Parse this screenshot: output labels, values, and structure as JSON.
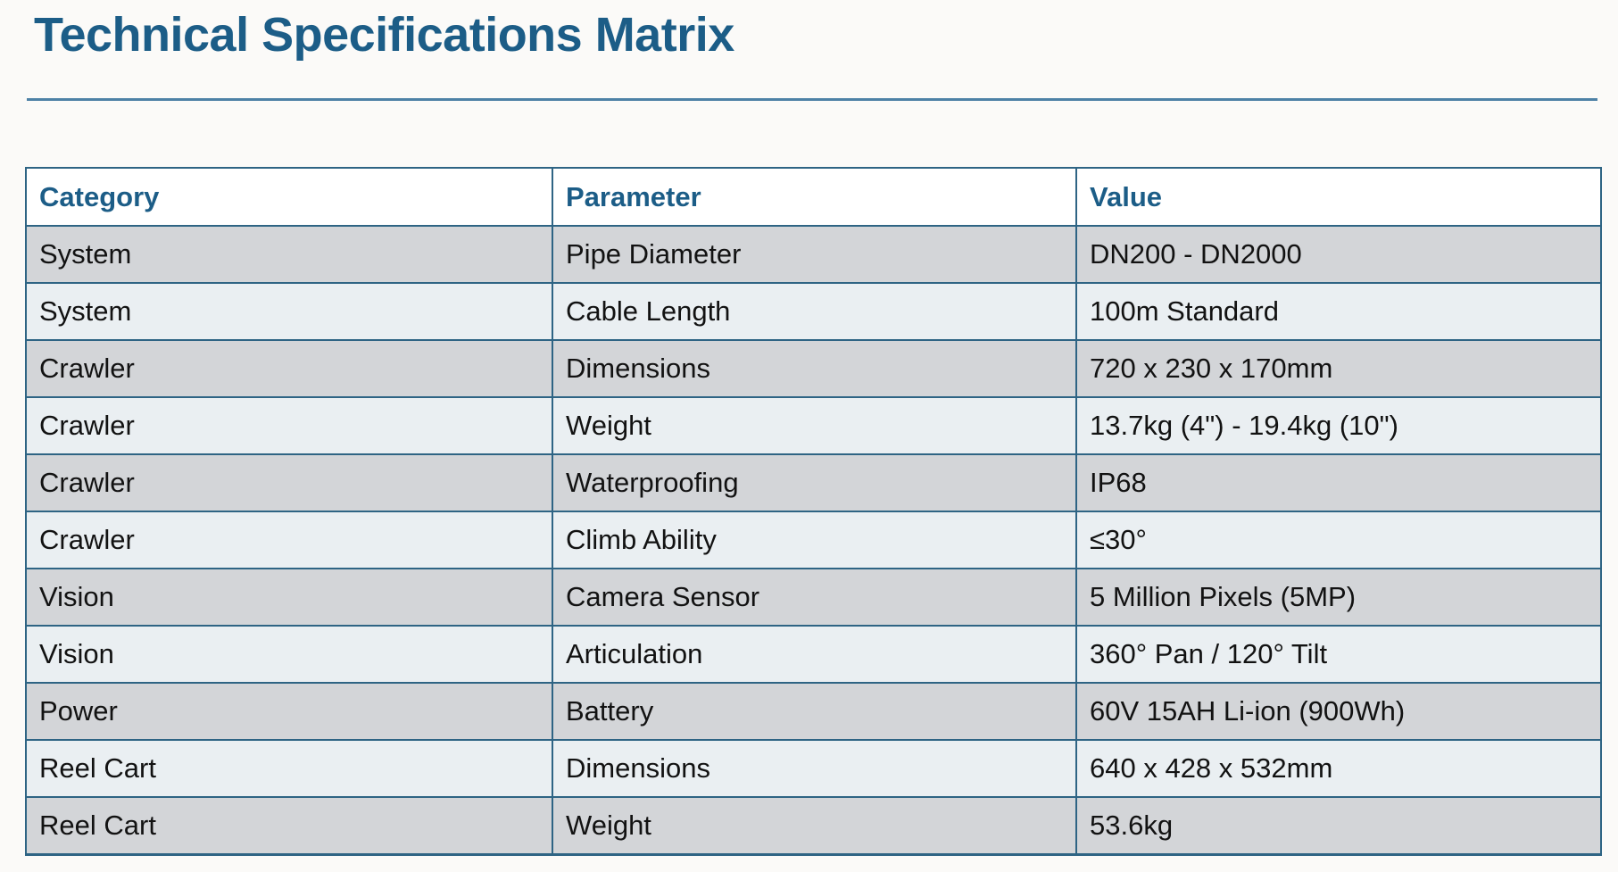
{
  "page": {
    "title": "Technical Specifications Matrix"
  },
  "table": {
    "columns": [
      "Category",
      "Parameter",
      "Value"
    ],
    "rows": [
      [
        "System",
        "Pipe Diameter",
        "DN200 - DN2000"
      ],
      [
        "System",
        "Cable Length",
        "100m Standard"
      ],
      [
        "Crawler",
        "Dimensions",
        "720 x 230 x 170mm"
      ],
      [
        "Crawler",
        "Weight",
        "13.7kg (4\") - 19.4kg (10\")"
      ],
      [
        "Crawler",
        "Waterproofing",
        "IP68"
      ],
      [
        "Crawler",
        "Climb Ability",
        "≤30°"
      ],
      [
        "Vision",
        "Camera Sensor",
        "5 Million Pixels (5MP)"
      ],
      [
        "Vision",
        "Articulation",
        "360° Pan / 120° Tilt"
      ],
      [
        "Power",
        "Battery",
        "60V 15AH Li-ion (900Wh)"
      ],
      [
        "Reel Cart",
        "Dimensions",
        "640 x 428 x 532mm"
      ],
      [
        "Reel Cart",
        "Weight",
        "53.6kg"
      ]
    ]
  },
  "colors": {
    "title_text": "#1c5d87",
    "header_text": "#1c5d87",
    "header_bg": "#ffffff",
    "border": "#2e6484",
    "rule": "#4d81a6",
    "row_gray": "#d3d5d8",
    "row_light": "#eaeff2",
    "body_text": "#121212",
    "page_bg": "#fbfaf8"
  }
}
